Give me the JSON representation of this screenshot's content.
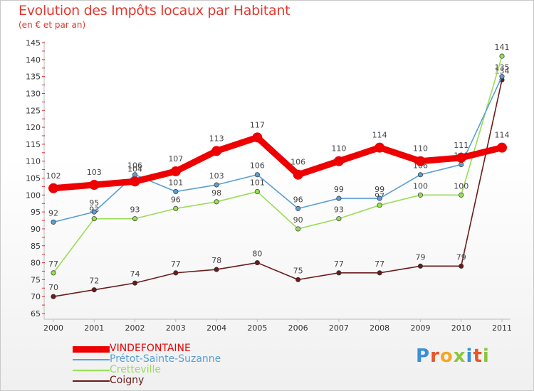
{
  "title": "Evolution des Impôts locaux par Habitant",
  "subtitle": "(en € et par an)",
  "brand": "Proxiti",
  "chart_data": {
    "type": "line",
    "title": "Evolution des Impôts locaux par Habitant",
    "subtitle": "(en € et par an)",
    "xlabel": "",
    "ylabel": "",
    "x": [
      "2000",
      "2001",
      "2002",
      "2003",
      "2004",
      "2005",
      "2006",
      "2007",
      "2008",
      "2009",
      "2010",
      "2011"
    ],
    "ylim": [
      65,
      145
    ],
    "yticks": [
      65,
      70,
      75,
      80,
      85,
      90,
      95,
      100,
      105,
      110,
      115,
      120,
      125,
      130,
      135,
      140,
      145
    ],
    "grid": false,
    "legend_position": "bottom-left",
    "series": [
      {
        "name": "Coigny",
        "color": "#6b1a1a",
        "values": [
          70,
          72,
          74,
          77,
          78,
          80,
          75,
          77,
          77,
          79,
          79,
          134
        ]
      },
      {
        "name": "Cretteville",
        "color": "#99dd55",
        "values": [
          77,
          93,
          93,
          96,
          98,
          101,
          90,
          93,
          97,
          100,
          100,
          141
        ]
      },
      {
        "name": "Prétot-Sainte-Suzanne",
        "color": "#5a9fd4",
        "values": [
          92,
          95,
          106,
          101,
          103,
          106,
          96,
          99,
          99,
          106,
          109,
          135
        ]
      },
      {
        "name": "VINDEFONTAINE",
        "color": "#ee0000",
        "values": [
          102,
          103,
          104,
          107,
          113,
          117,
          106,
          110,
          114,
          110,
          111,
          114
        ]
      }
    ],
    "legend_order": [
      "VINDEFONTAINE",
      "Prétot-Sainte-Suzanne",
      "Cretteville",
      "Coigny"
    ]
  }
}
